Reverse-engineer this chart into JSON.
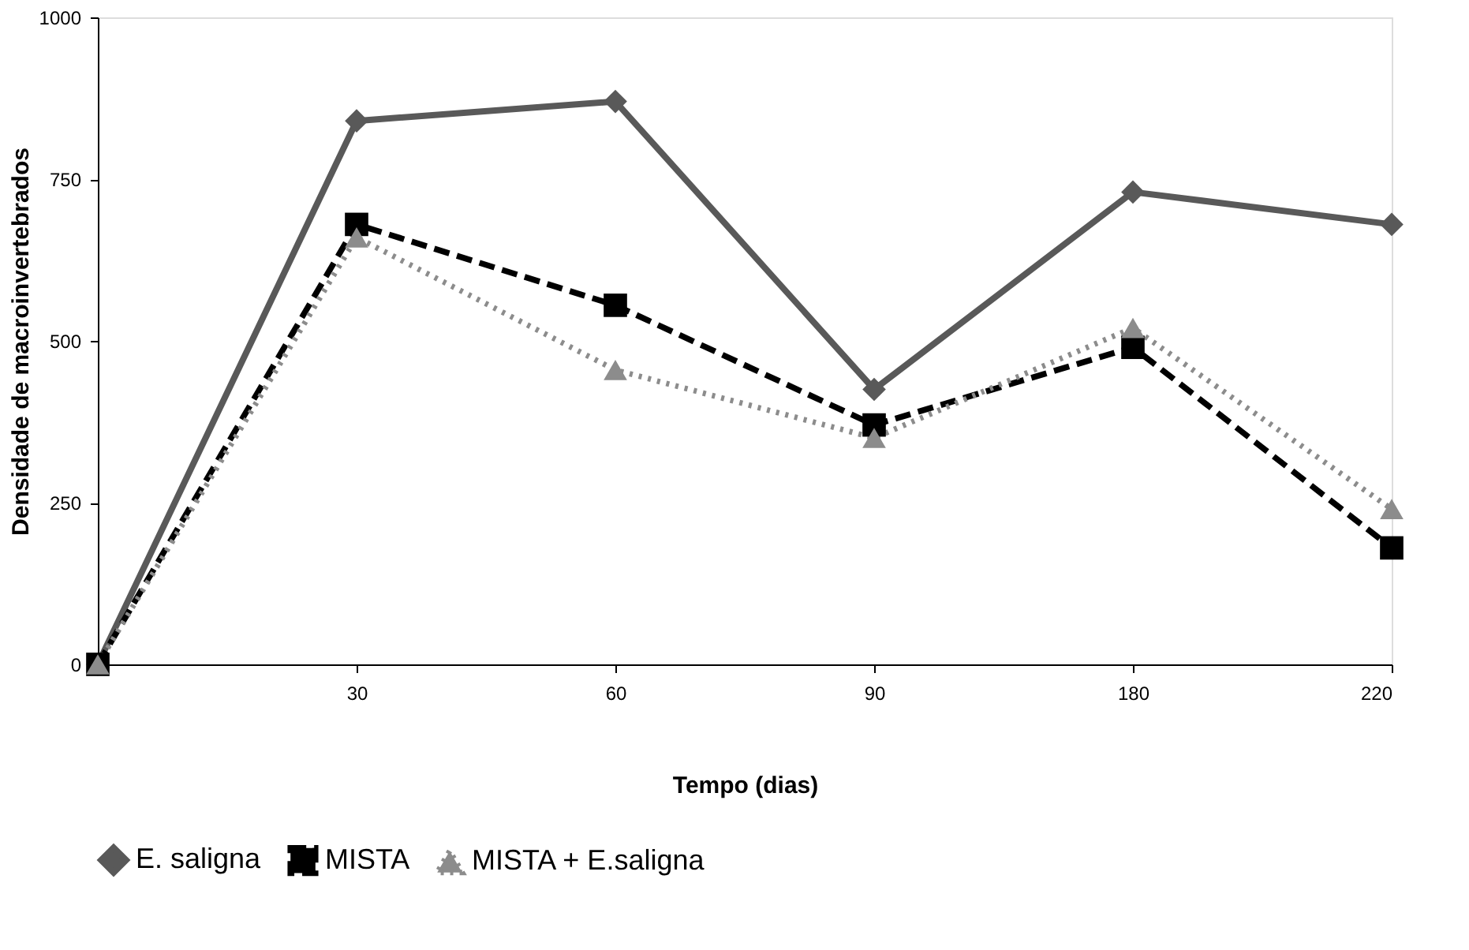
{
  "chart_data": {
    "type": "line",
    "xlabel": "Tempo (dias)",
    "ylabel": "Densidade de macroinvertebrados",
    "categories": [
      null,
      "30",
      "60",
      "90",
      "180",
      "220"
    ],
    "series": [
      {
        "name": "E. saligna",
        "color": "#595959",
        "marker": "diamond",
        "line_style": "solid",
        "values": [
          0,
          840,
          870,
          425,
          730,
          680
        ]
      },
      {
        "name": "MISTA",
        "color": "#000000",
        "marker": "square",
        "line_style": "dashed",
        "values": [
          0,
          680,
          555,
          370,
          490,
          180
        ]
      },
      {
        "name": "MISTA + E.saligna",
        "color": "#8c8c8c",
        "marker": "triangle",
        "line_style": "dotted",
        "values": [
          0,
          660,
          455,
          350,
          520,
          240
        ]
      }
    ],
    "ylim": [
      0,
      1000
    ],
    "yticks": [
      0,
      250,
      500,
      750,
      1000
    ],
    "grid": false,
    "legend": "bottom"
  }
}
